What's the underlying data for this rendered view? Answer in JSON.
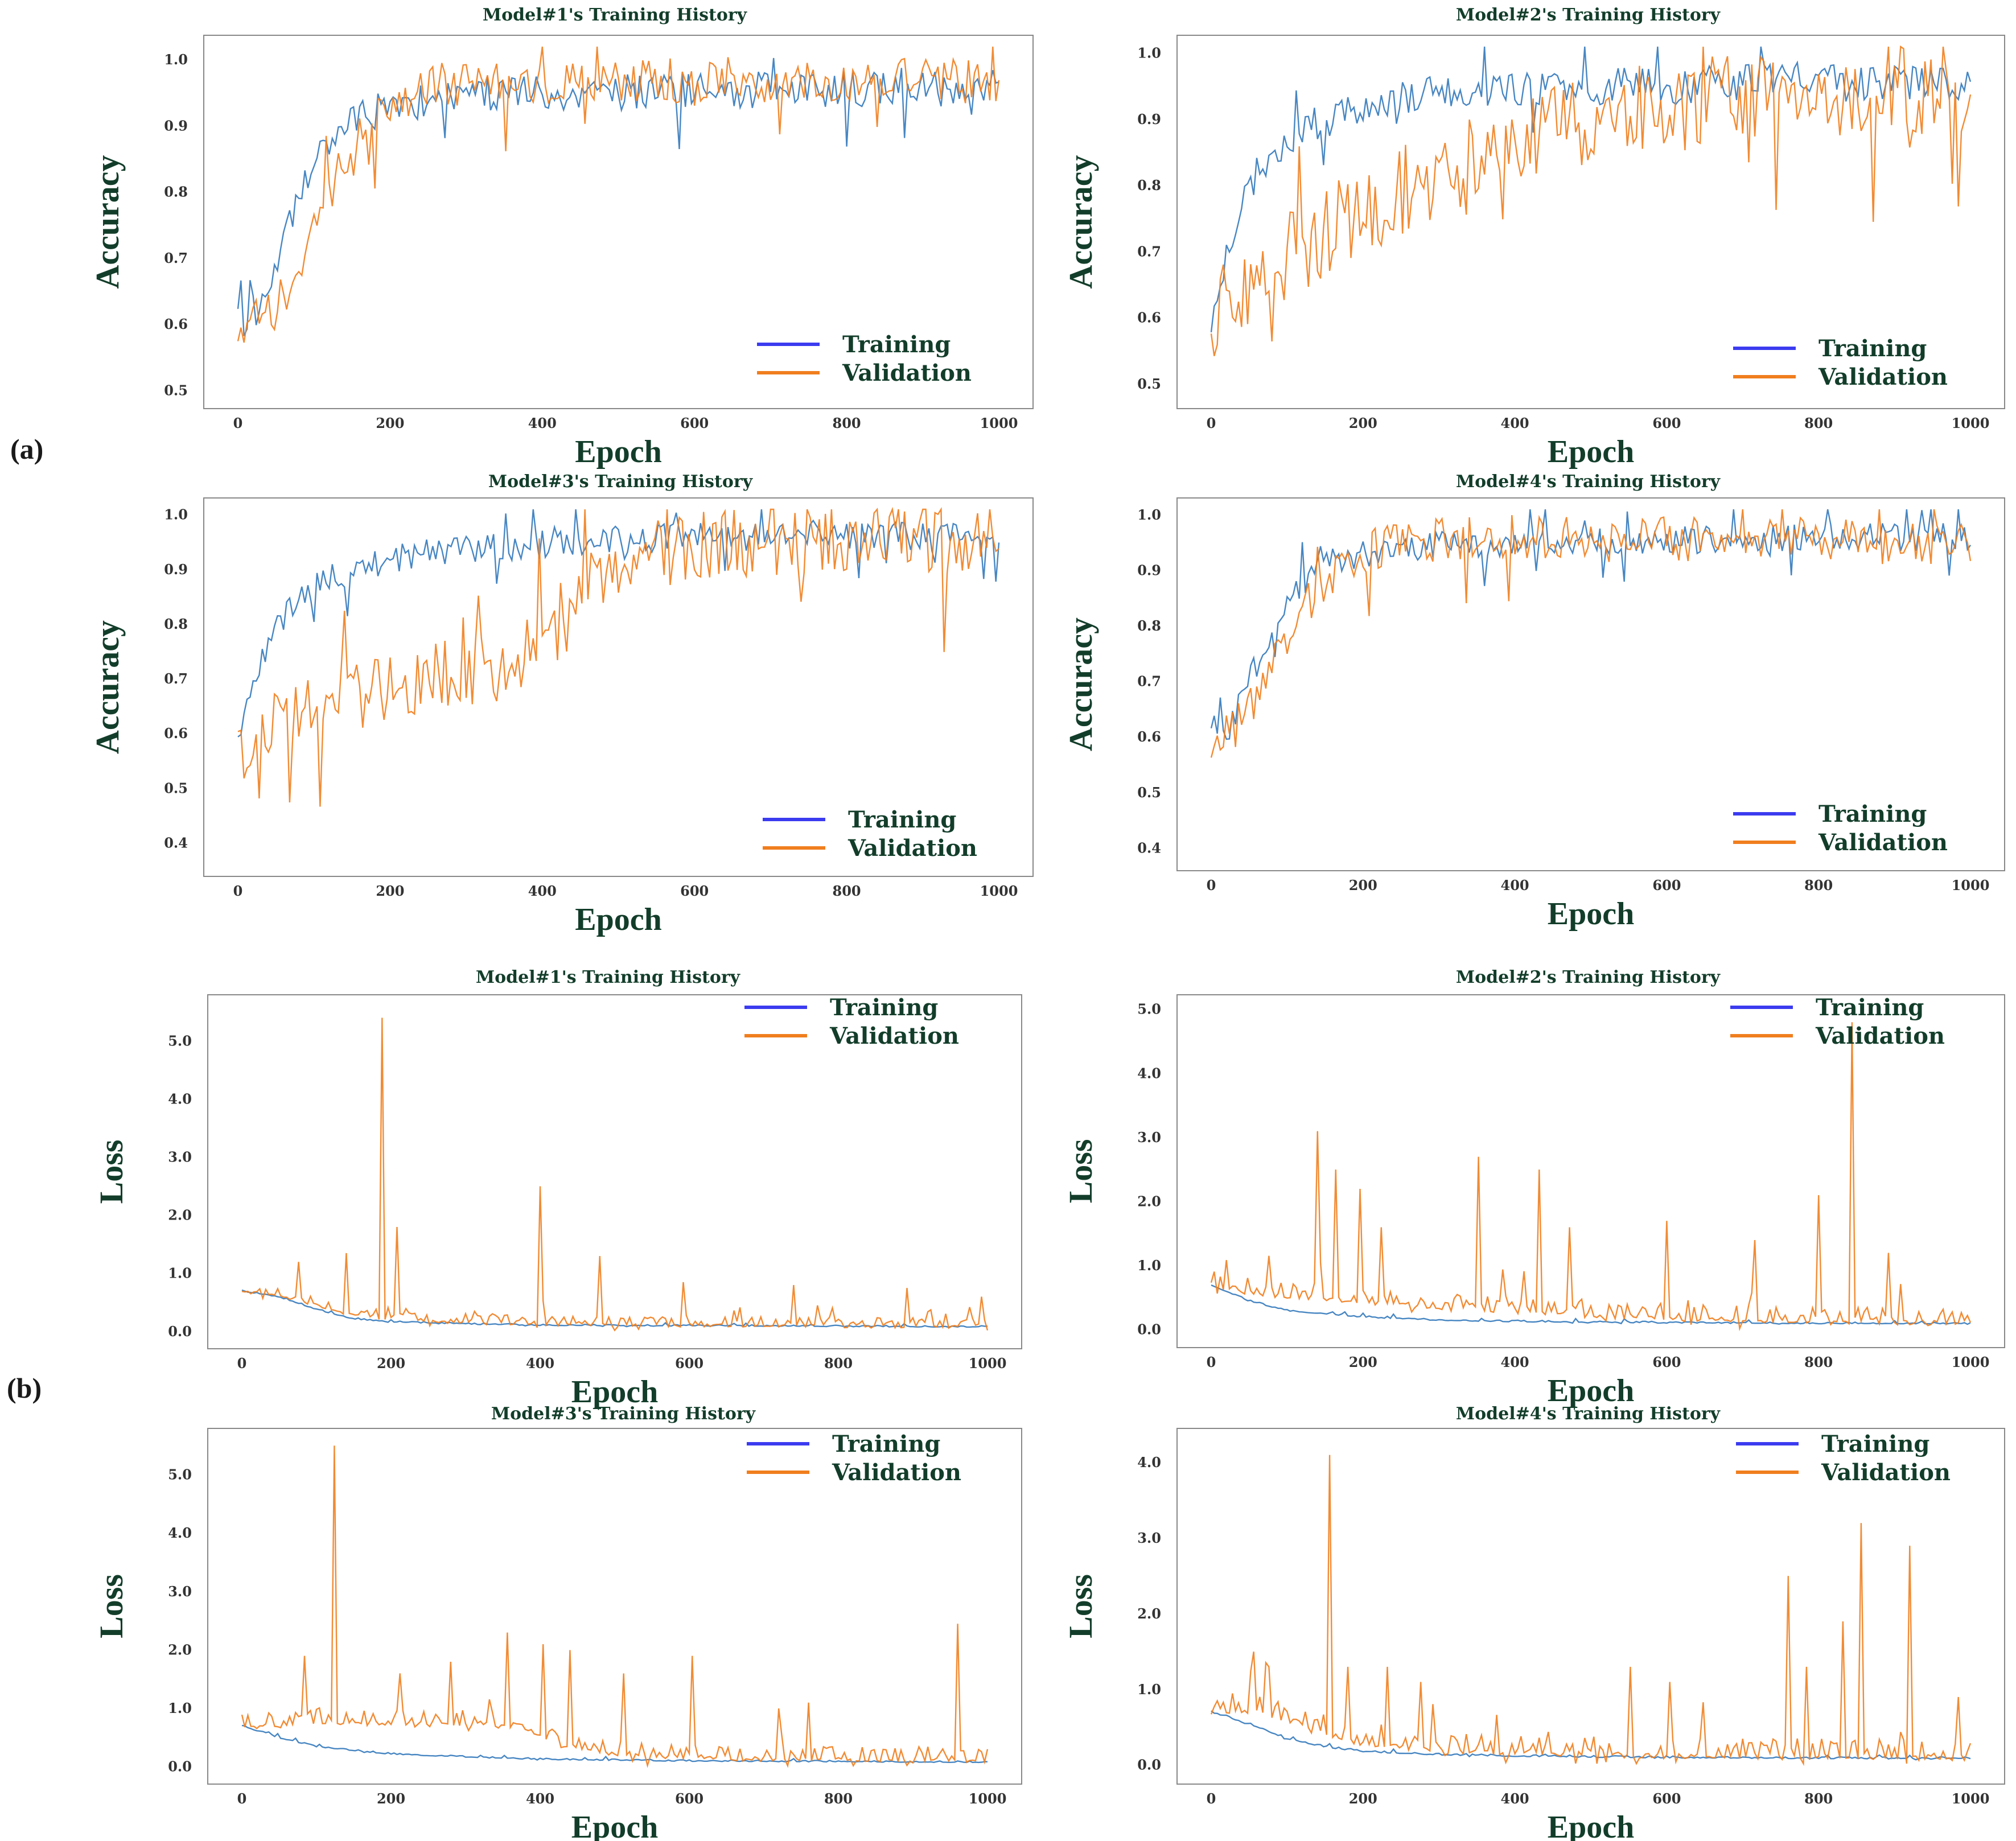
{
  "panel_labels": [
    "(a)",
    "(b)"
  ],
  "colors": {
    "training_legend": "#3b3bf0",
    "training_line": "#3d7fbf",
    "validation": "#f07e1e",
    "text": "#123d2a",
    "axis": "#888888"
  },
  "chart_data": [
    {
      "id": "acc-model1",
      "type": "line",
      "title": "Model#1's Training History",
      "xlabel": "Epoch",
      "ylabel": "Accuracy",
      "xlim": [
        0,
        1000
      ],
      "ylim": [
        0.49,
        1.02
      ],
      "xticks": [
        0,
        200,
        400,
        600,
        800,
        1000
      ],
      "yticks": [
        0.5,
        0.6,
        0.7,
        0.8,
        0.9,
        1.0
      ],
      "legend_position": "lower-right",
      "series": [
        {
          "name": "Training",
          "x": [
            0,
            25,
            50,
            75,
            100,
            125,
            150,
            200,
            250,
            300,
            350,
            400,
            450,
            500,
            550,
            600,
            650,
            700,
            750,
            800,
            850,
            900,
            950,
            1000
          ],
          "values": [
            0.6,
            0.62,
            0.68,
            0.77,
            0.84,
            0.88,
            0.91,
            0.93,
            0.94,
            0.945,
            0.95,
            0.95,
            0.945,
            0.95,
            0.955,
            0.95,
            0.955,
            0.955,
            0.955,
            0.955,
            0.96,
            0.955,
            0.96,
            0.96
          ],
          "noise": 0.028,
          "seed": 11
        },
        {
          "name": "Validation",
          "x": [
            0,
            25,
            50,
            75,
            100,
            125,
            150,
            200,
            250,
            300,
            350,
            400,
            450,
            500,
            550,
            600,
            650,
            700,
            750,
            800,
            850,
            900,
            950,
            1000
          ],
          "values": [
            0.6,
            0.6,
            0.62,
            0.68,
            0.75,
            0.82,
            0.87,
            0.94,
            0.96,
            0.965,
            0.97,
            0.97,
            0.97,
            0.97,
            0.97,
            0.965,
            0.97,
            0.965,
            0.965,
            0.97,
            0.965,
            0.97,
            0.965,
            0.97
          ],
          "noise": 0.035,
          "seed": 12
        }
      ]
    },
    {
      "id": "acc-model2",
      "type": "line",
      "title": "Model#2's Training History",
      "xlabel": "Epoch",
      "ylabel": "Accuracy",
      "xlim": [
        0,
        1000
      ],
      "ylim": [
        0.48,
        1.01
      ],
      "xticks": [
        0,
        200,
        400,
        600,
        800,
        1000
      ],
      "yticks": [
        0.5,
        0.6,
        0.7,
        0.8,
        0.9,
        1.0
      ],
      "legend_position": "lower-right",
      "series": [
        {
          "name": "Training",
          "x": [
            0,
            25,
            50,
            75,
            100,
            150,
            200,
            250,
            300,
            400,
            500,
            600,
            700,
            800,
            900,
            1000
          ],
          "values": [
            0.6,
            0.72,
            0.8,
            0.84,
            0.87,
            0.9,
            0.92,
            0.935,
            0.94,
            0.945,
            0.95,
            0.95,
            0.955,
            0.955,
            0.955,
            0.955
          ],
          "noise": 0.028,
          "seed": 21
        },
        {
          "name": "Validation",
          "x": [
            0,
            50,
            100,
            150,
            200,
            250,
            300,
            350,
            400,
            450,
            500,
            550,
            600,
            700,
            800,
            900,
            1000
          ],
          "values": [
            0.6,
            0.66,
            0.7,
            0.73,
            0.76,
            0.79,
            0.82,
            0.84,
            0.86,
            0.88,
            0.9,
            0.91,
            0.92,
            0.93,
            0.94,
            0.945,
            0.95
          ],
          "noise": 0.07,
          "seed": 22
        }
      ]
    },
    {
      "id": "acc-model3",
      "type": "line",
      "title": "Model#3's Training History",
      "xlabel": "Epoch",
      "ylabel": "Accuracy",
      "xlim": [
        0,
        1000
      ],
      "ylim": [
        0.36,
        1.01
      ],
      "xticks": [
        0,
        200,
        400,
        600,
        800,
        1000
      ],
      "yticks": [
        0.4,
        0.5,
        0.6,
        0.7,
        0.8,
        0.9,
        1.0
      ],
      "legend_position": "lower-right",
      "series": [
        {
          "name": "Training",
          "x": [
            0,
            25,
            50,
            75,
            100,
            150,
            200,
            250,
            300,
            400,
            500,
            600,
            700,
            800,
            900,
            1000
          ],
          "values": [
            0.6,
            0.72,
            0.8,
            0.84,
            0.87,
            0.9,
            0.92,
            0.93,
            0.935,
            0.945,
            0.955,
            0.96,
            0.96,
            0.96,
            0.96,
            0.96
          ],
          "noise": 0.026,
          "seed": 31
        },
        {
          "name": "Validation",
          "x": [
            0,
            50,
            100,
            150,
            200,
            250,
            300,
            350,
            380,
            420,
            450,
            500,
            550,
            600,
            700,
            800,
            900,
            1000
          ],
          "values": [
            0.58,
            0.62,
            0.65,
            0.67,
            0.69,
            0.7,
            0.71,
            0.72,
            0.76,
            0.84,
            0.88,
            0.91,
            0.93,
            0.94,
            0.95,
            0.955,
            0.955,
            0.96
          ],
          "noise": 0.065,
          "seed": 32
        }
      ]
    },
    {
      "id": "acc-model4",
      "type": "line",
      "title": "Model#4's Training History",
      "xlabel": "Epoch",
      "ylabel": "Accuracy",
      "xlim": [
        0,
        1000
      ],
      "ylim": [
        0.38,
        1.01
      ],
      "xticks": [
        0,
        200,
        400,
        600,
        800,
        1000
      ],
      "yticks": [
        0.4,
        0.5,
        0.6,
        0.7,
        0.8,
        0.9,
        1.0
      ],
      "legend_position": "lower-right",
      "series": [
        {
          "name": "Training",
          "x": [
            0,
            25,
            50,
            75,
            100,
            125,
            150,
            200,
            250,
            300,
            400,
            500,
            600,
            700,
            800,
            900,
            1000
          ],
          "values": [
            0.6,
            0.62,
            0.7,
            0.78,
            0.84,
            0.88,
            0.91,
            0.93,
            0.94,
            0.945,
            0.95,
            0.955,
            0.955,
            0.955,
            0.96,
            0.96,
            0.96
          ],
          "noise": 0.025,
          "seed": 41
        },
        {
          "name": "Validation",
          "x": [
            0,
            25,
            50,
            75,
            100,
            125,
            150,
            200,
            250,
            300,
            400,
            500,
            600,
            700,
            800,
            900,
            1000
          ],
          "values": [
            0.6,
            0.6,
            0.65,
            0.72,
            0.79,
            0.84,
            0.88,
            0.93,
            0.95,
            0.955,
            0.96,
            0.955,
            0.955,
            0.96,
            0.955,
            0.95,
            0.95
          ],
          "noise": 0.04,
          "seed": 42
        }
      ]
    },
    {
      "id": "loss-model1",
      "type": "line",
      "title": "Model#1's Training History",
      "xlabel": "Epoch",
      "ylabel": "Loss",
      "xlim": [
        0,
        1000
      ],
      "ylim": [
        -0.1,
        5.6
      ],
      "xticks": [
        0,
        200,
        400,
        600,
        800,
        1000
      ],
      "yticks": [
        0.0,
        1.0,
        2.0,
        3.0,
        4.0,
        5.0
      ],
      "legend_position": "top-right",
      "series": [
        {
          "name": "Training",
          "x": [
            0,
            50,
            100,
            150,
            200,
            300,
            400,
            600,
            800,
            1000
          ],
          "values": [
            0.7,
            0.6,
            0.38,
            0.22,
            0.17,
            0.13,
            0.11,
            0.1,
            0.09,
            0.08
          ],
          "noise": 0.02,
          "seed": 51
        },
        {
          "name": "Validation",
          "x": [
            0,
            50,
            100,
            150,
            200,
            300,
            400,
            600,
            800,
            1000
          ],
          "values": [
            0.7,
            0.65,
            0.45,
            0.3,
            0.22,
            0.17,
            0.14,
            0.12,
            0.11,
            0.1
          ],
          "noise": 0.14,
          "seed": 52,
          "spikes": [
            [
              75,
              1.2
            ],
            [
              140,
              1.35
            ],
            [
              187,
              5.4
            ],
            [
              208,
              1.8
            ],
            [
              400,
              2.5
            ],
            [
              480,
              1.3
            ],
            [
              590,
              0.85
            ],
            [
              740,
              0.8
            ],
            [
              890,
              0.75
            ],
            [
              990,
              0.6
            ]
          ]
        }
      ]
    },
    {
      "id": "loss-model2",
      "type": "line",
      "title": "Model#2's Training History",
      "xlabel": "Epoch",
      "ylabel": "Loss",
      "xlim": [
        0,
        1000
      ],
      "ylim": [
        -0.1,
        5.05
      ],
      "xticks": [
        0,
        200,
        400,
        600,
        800,
        1000
      ],
      "yticks": [
        0.0,
        1.0,
        2.0,
        3.0,
        4.0,
        5.0
      ],
      "legend_position": "top-right",
      "series": [
        {
          "name": "Training",
          "x": [
            0,
            50,
            100,
            200,
            300,
            400,
            600,
            800,
            1000
          ],
          "values": [
            0.7,
            0.45,
            0.3,
            0.2,
            0.15,
            0.13,
            0.11,
            0.1,
            0.1
          ],
          "noise": 0.02,
          "seed": 61
        },
        {
          "name": "Validation",
          "x": [
            0,
            50,
            100,
            200,
            300,
            400,
            500,
            600,
            800,
            1000
          ],
          "values": [
            0.7,
            0.6,
            0.55,
            0.45,
            0.38,
            0.32,
            0.25,
            0.2,
            0.15,
            0.12
          ],
          "noise": 0.22,
          "seed": 62,
          "spikes": [
            [
              140,
              3.1
            ],
            [
              165,
              2.5
            ],
            [
              195,
              2.2
            ],
            [
              225,
              1.6
            ],
            [
              350,
              2.7
            ],
            [
              432,
              2.5
            ],
            [
              470,
              1.6
            ],
            [
              600,
              1.7
            ],
            [
              715,
              1.4
            ],
            [
              800,
              2.1
            ],
            [
              845,
              4.8
            ],
            [
              890,
              1.2
            ]
          ]
        }
      ]
    },
    {
      "id": "loss-model3",
      "type": "line",
      "title": "Model#3's Training History",
      "xlabel": "Epoch",
      "ylabel": "Loss",
      "xlim": [
        0,
        1000
      ],
      "ylim": [
        -0.1,
        5.6
      ],
      "xticks": [
        0,
        200,
        400,
        600,
        800,
        1000
      ],
      "yticks": [
        0.0,
        1.0,
        2.0,
        3.0,
        4.0,
        5.0
      ],
      "legend_position": "top-right",
      "series": [
        {
          "name": "Training",
          "x": [
            0,
            50,
            100,
            150,
            200,
            300,
            400,
            600,
            800,
            1000
          ],
          "values": [
            0.7,
            0.5,
            0.35,
            0.28,
            0.22,
            0.17,
            0.13,
            0.1,
            0.09,
            0.08
          ],
          "noise": 0.02,
          "seed": 71
        },
        {
          "name": "Validation",
          "x": [
            0,
            50,
            100,
            200,
            300,
            380,
            420,
            500,
            600,
            800,
            1000
          ],
          "values": [
            0.7,
            0.75,
            0.8,
            0.75,
            0.75,
            0.7,
            0.4,
            0.25,
            0.18,
            0.14,
            0.12
          ],
          "noise": 0.22,
          "seed": 72,
          "spikes": [
            [
              85,
              1.9
            ],
            [
              125,
              5.5
            ],
            [
              210,
              1.6
            ],
            [
              280,
              1.8
            ],
            [
              355,
              2.3
            ],
            [
              405,
              2.1
            ],
            [
              440,
              2.0
            ],
            [
              510,
              1.6
            ],
            [
              605,
              1.9
            ],
            [
              720,
              1.0
            ],
            [
              760,
              1.1
            ],
            [
              960,
              2.45
            ]
          ]
        }
      ]
    },
    {
      "id": "loss-model4",
      "type": "line",
      "title": "Model#4's Training History",
      "xlabel": "Epoch",
      "ylabel": "Loss",
      "xlim": [
        0,
        1000
      ],
      "ylim": [
        -0.1,
        4.3
      ],
      "xticks": [
        0,
        200,
        400,
        600,
        800,
        1000
      ],
      "yticks": [
        0.0,
        1.0,
        2.0,
        3.0,
        4.0
      ],
      "legend_position": "top-right",
      "series": [
        {
          "name": "Training",
          "x": [
            0,
            50,
            100,
            150,
            200,
            300,
            400,
            600,
            800,
            1000
          ],
          "values": [
            0.7,
            0.55,
            0.35,
            0.24,
            0.18,
            0.14,
            0.12,
            0.1,
            0.09,
            0.09
          ],
          "noise": 0.02,
          "seed": 81
        },
        {
          "name": "Validation",
          "x": [
            0,
            50,
            100,
            150,
            200,
            300,
            400,
            600,
            800,
            1000
          ],
          "values": [
            0.7,
            0.75,
            0.6,
            0.45,
            0.32,
            0.22,
            0.18,
            0.15,
            0.13,
            0.12
          ],
          "noise": 0.22,
          "seed": 82,
          "spikes": [
            [
              55,
              1.5
            ],
            [
              75,
              1.3
            ],
            [
              155,
              4.1
            ],
            [
              180,
              1.3
            ],
            [
              230,
              1.3
            ],
            [
              275,
              1.1
            ],
            [
              550,
              1.3
            ],
            [
              605,
              1.1
            ],
            [
              760,
              2.5
            ],
            [
              785,
              1.3
            ],
            [
              830,
              1.9
            ],
            [
              855,
              3.2
            ],
            [
              920,
              2.9
            ],
            [
              985,
              0.9
            ]
          ]
        }
      ]
    }
  ]
}
